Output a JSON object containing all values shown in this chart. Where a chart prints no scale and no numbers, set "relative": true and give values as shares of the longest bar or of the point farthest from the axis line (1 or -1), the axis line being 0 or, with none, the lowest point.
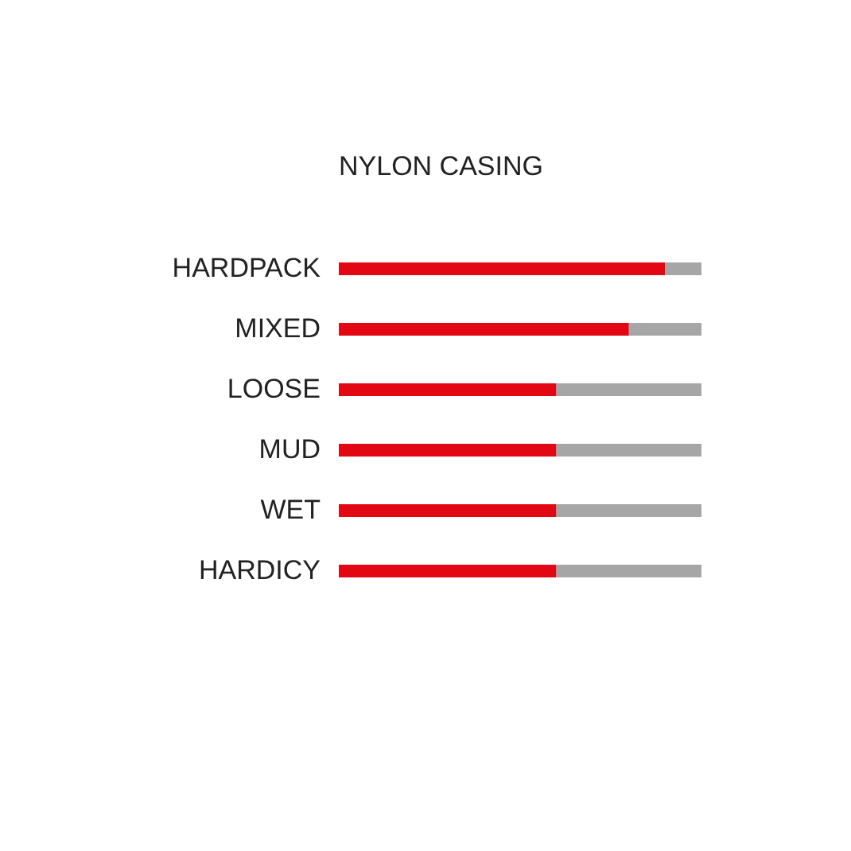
{
  "chart_data": {
    "type": "bar",
    "title": "NYLON CASING",
    "orientation": "horizontal",
    "stacked": true,
    "relative": true,
    "grid": false,
    "categories": [
      "HARDPACK",
      "MIXED",
      "LOOSE",
      "MUD",
      "WET",
      "HARDICY"
    ],
    "series": [
      {
        "color": "#e30613",
        "values": [
          0.9,
          0.8,
          0.6,
          0.6,
          0.6,
          0.6
        ]
      },
      {
        "color": "#a6a6a6",
        "values": [
          0.1,
          0.2,
          0.4,
          0.4,
          0.4,
          0.4
        ]
      }
    ]
  }
}
